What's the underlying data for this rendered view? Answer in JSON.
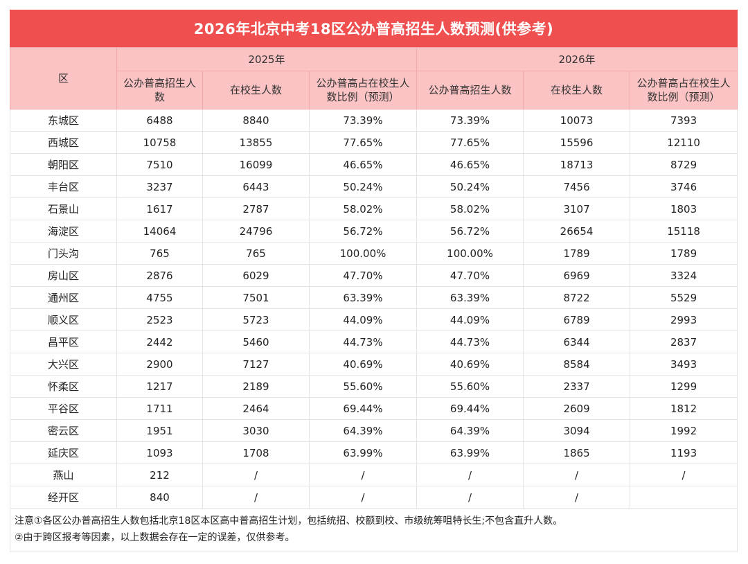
{
  "title": "2026年北京中考18区公办普高招生人数预测(供参考)",
  "header": {
    "district": "区",
    "year_2025": "2025年",
    "year_2026": "2026年",
    "col_enroll": "公办普高招生人数",
    "col_students": "在校生人数",
    "col_ratio": "公办普高占在校生人数比例（预测）"
  },
  "rows": [
    {
      "district": "东城区",
      "c1": "6488",
      "c2": "8840",
      "c3": "73.39%",
      "c4": "73.39%",
      "c5": "10073",
      "c6": "7393"
    },
    {
      "district": "西城区",
      "c1": "10758",
      "c2": "13855",
      "c3": "77.65%",
      "c4": "77.65%",
      "c5": "15596",
      "c6": "12110"
    },
    {
      "district": "朝阳区",
      "c1": "7510",
      "c2": "16099",
      "c3": "46.65%",
      "c4": "46.65%",
      "c5": "18713",
      "c6": "8729"
    },
    {
      "district": "丰台区",
      "c1": "3237",
      "c2": "6443",
      "c3": "50.24%",
      "c4": "50.24%",
      "c5": "7456",
      "c6": "3746"
    },
    {
      "district": "石景山",
      "c1": "1617",
      "c2": "2787",
      "c3": "58.02%",
      "c4": "58.02%",
      "c5": "3107",
      "c6": "1803"
    },
    {
      "district": "海淀区",
      "c1": "14064",
      "c2": "24796",
      "c3": "56.72%",
      "c4": "56.72%",
      "c5": "26654",
      "c6": "15118"
    },
    {
      "district": "门头沟",
      "c1": "765",
      "c2": "765",
      "c3": "100.00%",
      "c4": "100.00%",
      "c5": "1789",
      "c6": "1789"
    },
    {
      "district": "房山区",
      "c1": "2876",
      "c2": "6029",
      "c3": "47.70%",
      "c4": "47.70%",
      "c5": "6969",
      "c6": "3324"
    },
    {
      "district": "通州区",
      "c1": "4755",
      "c2": "7501",
      "c3": "63.39%",
      "c4": "63.39%",
      "c5": "8722",
      "c6": "5529"
    },
    {
      "district": "顺义区",
      "c1": "2523",
      "c2": "5723",
      "c3": "44.09%",
      "c4": "44.09%",
      "c5": "6789",
      "c6": "2993"
    },
    {
      "district": "昌平区",
      "c1": "2442",
      "c2": "5460",
      "c3": "44.73%",
      "c4": "44.73%",
      "c5": "6344",
      "c6": "2837"
    },
    {
      "district": "大兴区",
      "c1": "2900",
      "c2": "7127",
      "c3": "40.69%",
      "c4": "40.69%",
      "c5": "8584",
      "c6": "3493"
    },
    {
      "district": "怀柔区",
      "c1": "1217",
      "c2": "2189",
      "c3": "55.60%",
      "c4": "55.60%",
      "c5": "2337",
      "c6": "1299"
    },
    {
      "district": "平谷区",
      "c1": "1711",
      "c2": "2464",
      "c3": "69.44%",
      "c4": "69.44%",
      "c5": "2609",
      "c6": "1812"
    },
    {
      "district": "密云区",
      "c1": "1951",
      "c2": "3030",
      "c3": "64.39%",
      "c4": "64.39%",
      "c5": "3094",
      "c6": "1992"
    },
    {
      "district": "延庆区",
      "c1": "1093",
      "c2": "1708",
      "c3": "63.99%",
      "c4": "63.99%",
      "c5": "1865",
      "c6": "1193"
    },
    {
      "district": "燕山",
      "c1": "212",
      "c2": "/",
      "c3": "/",
      "c4": "/",
      "c5": "/",
      "c6": "/"
    },
    {
      "district": "经开区",
      "c1": "840",
      "c2": "/",
      "c3": "/",
      "c4": "/",
      "c5": "/",
      "c6": ""
    }
  ],
  "notes": [
    "注意①各区公办普高招生人数包括北京18区本区高中普高招生计划，包括统招、校额到校、市级统筹咀特长生;不包含直升人数。",
    "②由于跨区报考等因素，以上数据会存在一定的误差，仅供参考。"
  ]
}
